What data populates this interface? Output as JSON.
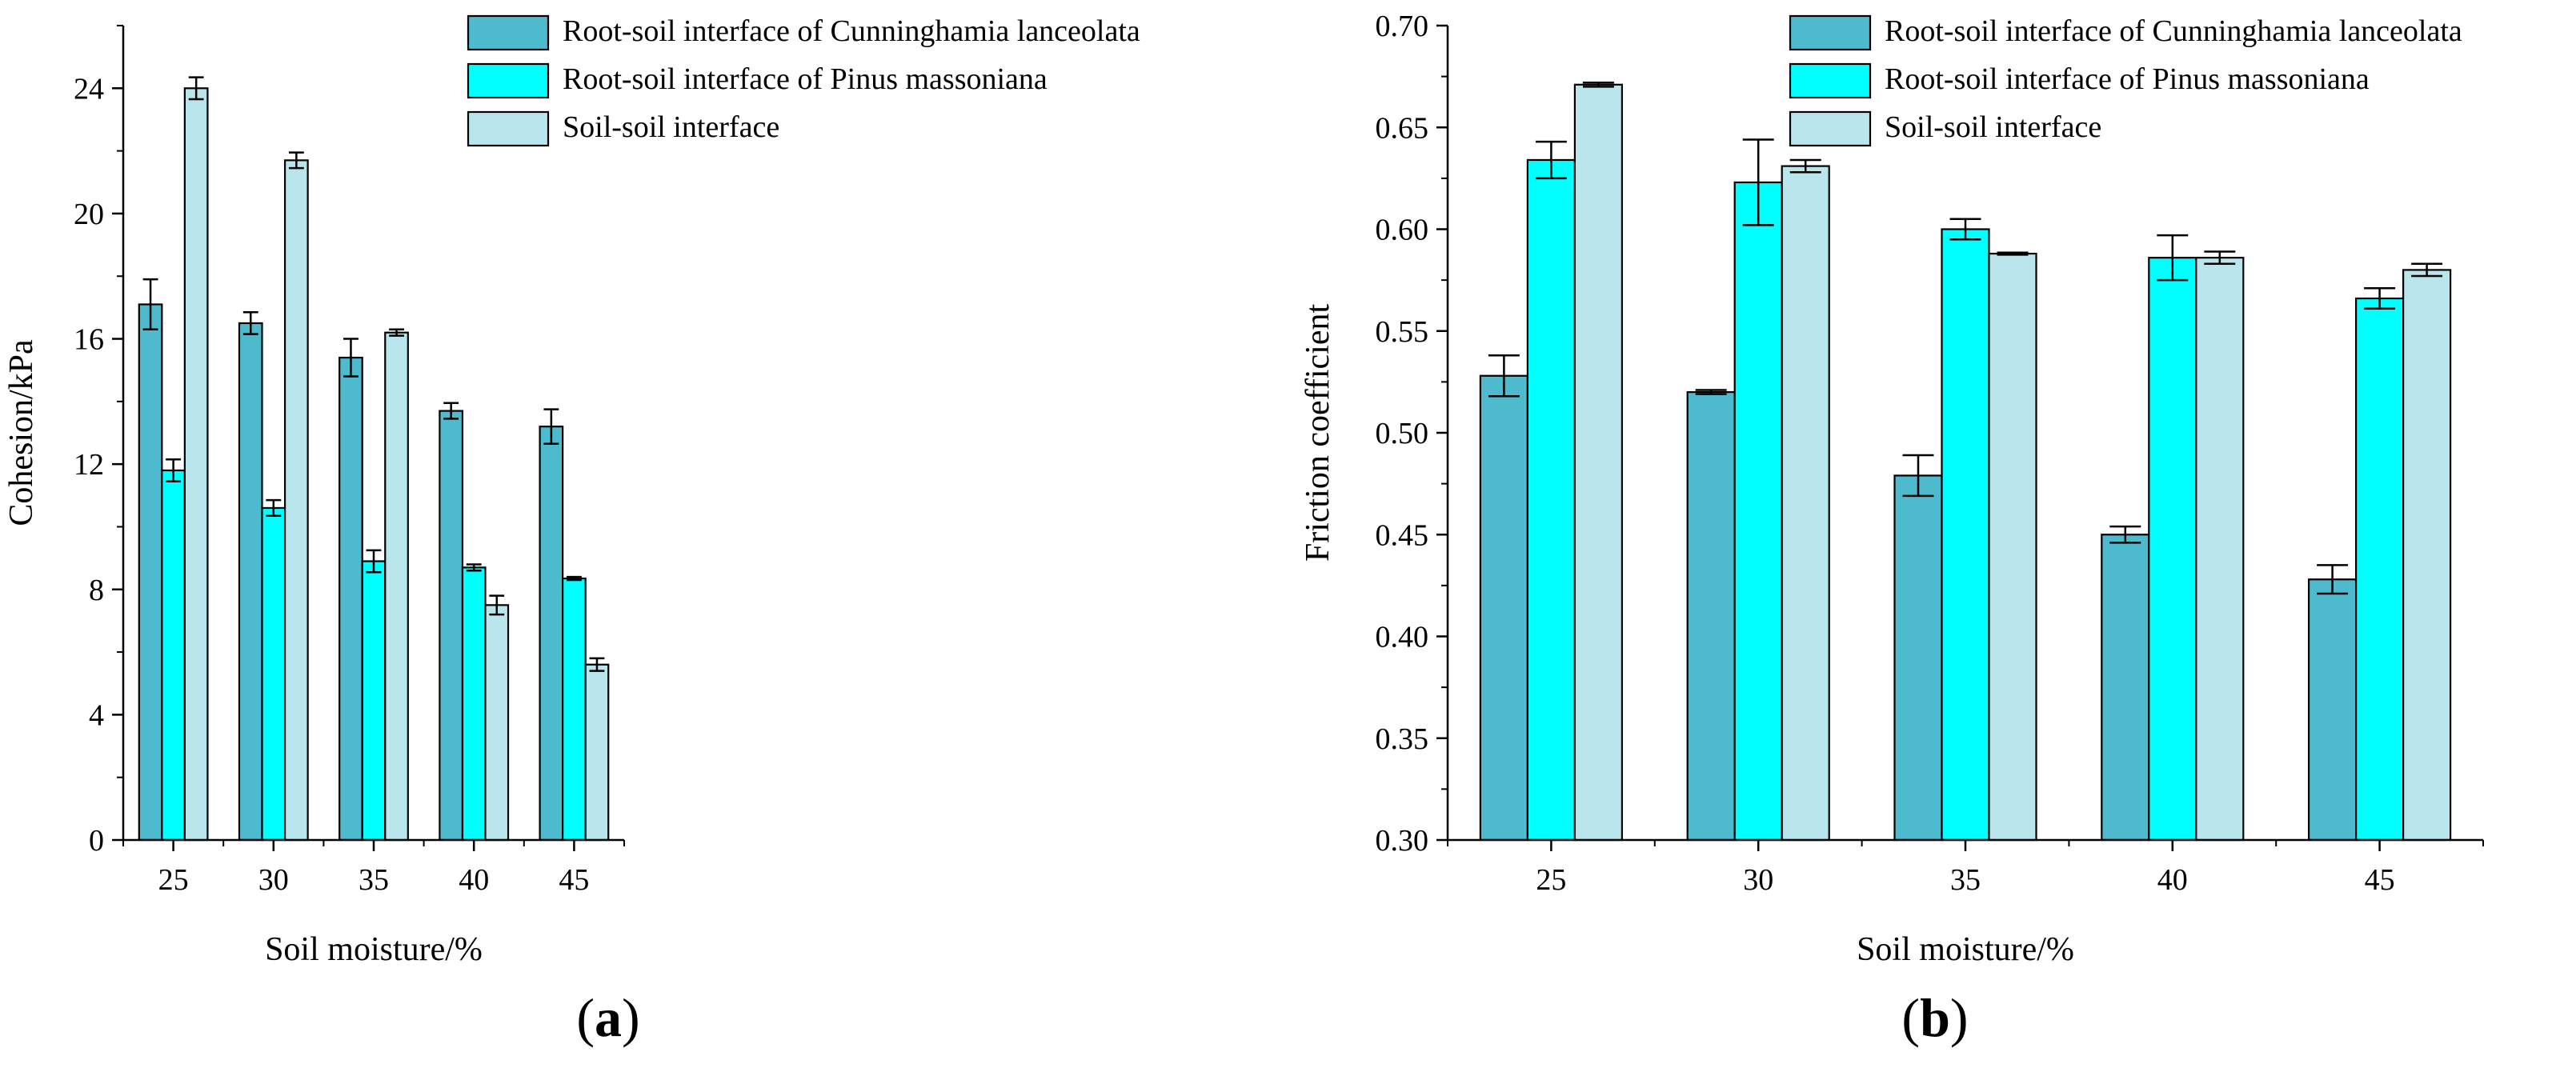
{
  "colors": {
    "series": [
      "#4DBACD",
      "#00FFFF",
      "#B9E6EC"
    ],
    "stroke": "#000000"
  },
  "chart_data": [
    {
      "type": "bar",
      "panel_label": "a",
      "xlabel": "Soil moisture/%",
      "ylabel": "Cohesion/kPa",
      "categories": [
        "25",
        "30",
        "35",
        "40",
        "45"
      ],
      "ylim": [
        0,
        26
      ],
      "yticks": [
        0,
        4,
        8,
        12,
        16,
        20,
        24
      ],
      "ytick_labels": [
        "0",
        "4",
        "8",
        "12",
        "16",
        "20",
        "24"
      ],
      "legend_position": "top-right",
      "series": [
        {
          "name": "Root-soil interface of Cunninghamia lanceolata",
          "values": [
            17.1,
            16.5,
            15.4,
            13.7,
            13.2
          ],
          "errors": [
            0.8,
            0.35,
            0.6,
            0.25,
            0.55
          ]
        },
        {
          "name": "Root-soil interface of Pinus massoniana",
          "values": [
            11.8,
            10.6,
            8.9,
            8.7,
            8.35
          ],
          "errors": [
            0.35,
            0.25,
            0.35,
            0.1,
            0.05
          ]
        },
        {
          "name": "Soil-soil interface",
          "values": [
            24.0,
            21.7,
            16.2,
            7.5,
            5.6
          ],
          "errors": [
            0.35,
            0.25,
            0.1,
            0.3,
            0.2
          ]
        }
      ]
    },
    {
      "type": "bar",
      "panel_label": "b",
      "xlabel": "Soil moisture/%",
      "ylabel": "Friction coefficient",
      "categories": [
        "25",
        "30",
        "35",
        "40",
        "45"
      ],
      "ylim": [
        0.3,
        0.7
      ],
      "yticks": [
        0.3,
        0.35,
        0.4,
        0.45,
        0.5,
        0.55,
        0.6,
        0.65,
        0.7
      ],
      "ytick_labels": [
        "0.30",
        "0.35",
        "0.40",
        "0.45",
        "0.50",
        "0.55",
        "0.60",
        "0.65",
        "0.70"
      ],
      "legend_position": "top-right",
      "series": [
        {
          "name": "Root-soil interface of Cunninghamia lanceolata",
          "values": [
            0.528,
            0.52,
            0.479,
            0.45,
            0.428
          ],
          "errors": [
            0.01,
            0.001,
            0.01,
            0.004,
            0.007
          ]
        },
        {
          "name": "Root-soil interface of Pinus massoniana",
          "values": [
            0.634,
            0.623,
            0.6,
            0.586,
            0.566
          ],
          "errors": [
            0.009,
            0.021,
            0.005,
            0.011,
            0.005
          ]
        },
        {
          "name": "Soil-soil interface",
          "values": [
            0.671,
            0.631,
            0.588,
            0.586,
            0.58
          ],
          "errors": [
            0.001,
            0.003,
            0.0005,
            0.003,
            0.003
          ]
        }
      ]
    }
  ]
}
